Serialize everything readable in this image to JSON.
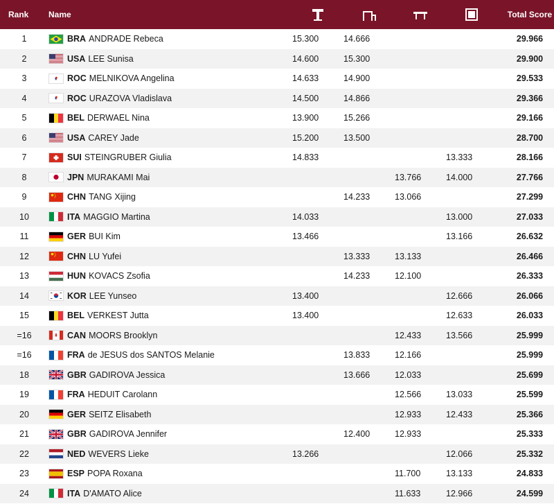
{
  "header": {
    "rank": "Rank",
    "name": "Name",
    "apparatus_icons": [
      "vault-icon",
      "uneven-bars-icon",
      "balance-beam-icon",
      "floor-exercise-icon"
    ],
    "total": "Total Score"
  },
  "colors": {
    "header_bg": "#7a1428",
    "row_alt": "#f2f2f2"
  },
  "rows": [
    {
      "rank": "1",
      "noc": "BRA",
      "athlete": "ANDRADE Rebeca",
      "vt": "15.300",
      "ub": "14.666",
      "bb": "",
      "fx": "",
      "total": "29.966"
    },
    {
      "rank": "2",
      "noc": "USA",
      "athlete": "LEE Sunisa",
      "vt": "14.600",
      "ub": "15.300",
      "bb": "",
      "fx": "",
      "total": "29.900"
    },
    {
      "rank": "3",
      "noc": "ROC",
      "athlete": "MELNIKOVA Angelina",
      "vt": "14.633",
      "ub": "14.900",
      "bb": "",
      "fx": "",
      "total": "29.533"
    },
    {
      "rank": "4",
      "noc": "ROC",
      "athlete": "URAZOVA Vladislava",
      "vt": "14.500",
      "ub": "14.866",
      "bb": "",
      "fx": "",
      "total": "29.366"
    },
    {
      "rank": "5",
      "noc": "BEL",
      "athlete": "DERWAEL Nina",
      "vt": "13.900",
      "ub": "15.266",
      "bb": "",
      "fx": "",
      "total": "29.166"
    },
    {
      "rank": "6",
      "noc": "USA",
      "athlete": "CAREY Jade",
      "vt": "15.200",
      "ub": "13.500",
      "bb": "",
      "fx": "",
      "total": "28.700"
    },
    {
      "rank": "7",
      "noc": "SUI",
      "athlete": "STEINGRUBER Giulia",
      "vt": "14.833",
      "ub": "",
      "bb": "",
      "fx": "13.333",
      "total": "28.166"
    },
    {
      "rank": "8",
      "noc": "JPN",
      "athlete": "MURAKAMI Mai",
      "vt": "",
      "ub": "",
      "bb": "13.766",
      "fx": "14.000",
      "total": "27.766"
    },
    {
      "rank": "9",
      "noc": "CHN",
      "athlete": "TANG Xijing",
      "vt": "",
      "ub": "14.233",
      "bb": "13.066",
      "fx": "",
      "total": "27.299"
    },
    {
      "rank": "10",
      "noc": "ITA",
      "athlete": "MAGGIO Martina",
      "vt": "14.033",
      "ub": "",
      "bb": "",
      "fx": "13.000",
      "total": "27.033"
    },
    {
      "rank": "11",
      "noc": "GER",
      "athlete": "BUI Kim",
      "vt": "13.466",
      "ub": "",
      "bb": "",
      "fx": "13.166",
      "total": "26.632"
    },
    {
      "rank": "12",
      "noc": "CHN",
      "athlete": "LU Yufei",
      "vt": "",
      "ub": "13.333",
      "bb": "13.133",
      "fx": "",
      "total": "26.466"
    },
    {
      "rank": "13",
      "noc": "HUN",
      "athlete": "KOVACS Zsofia",
      "vt": "",
      "ub": "14.233",
      "bb": "12.100",
      "fx": "",
      "total": "26.333"
    },
    {
      "rank": "14",
      "noc": "KOR",
      "athlete": "LEE Yunseo",
      "vt": "13.400",
      "ub": "",
      "bb": "",
      "fx": "12.666",
      "total": "26.066"
    },
    {
      "rank": "15",
      "noc": "BEL",
      "athlete": "VERKEST Jutta",
      "vt": "13.400",
      "ub": "",
      "bb": "",
      "fx": "12.633",
      "total": "26.033"
    },
    {
      "rank": "=16",
      "noc": "CAN",
      "athlete": "MOORS Brooklyn",
      "vt": "",
      "ub": "",
      "bb": "12.433",
      "fx": "13.566",
      "total": "25.999"
    },
    {
      "rank": "=16",
      "noc": "FRA",
      "athlete": "de JESUS dos SANTOS Melanie",
      "vt": "",
      "ub": "13.833",
      "bb": "12.166",
      "fx": "",
      "total": "25.999"
    },
    {
      "rank": "18",
      "noc": "GBR",
      "athlete": "GADIROVA Jessica",
      "vt": "",
      "ub": "13.666",
      "bb": "12.033",
      "fx": "",
      "total": "25.699"
    },
    {
      "rank": "19",
      "noc": "FRA",
      "athlete": "HEDUIT Carolann",
      "vt": "",
      "ub": "",
      "bb": "12.566",
      "fx": "13.033",
      "total": "25.599"
    },
    {
      "rank": "20",
      "noc": "GER",
      "athlete": "SEITZ Elisabeth",
      "vt": "",
      "ub": "",
      "bb": "12.933",
      "fx": "12.433",
      "total": "25.366"
    },
    {
      "rank": "21",
      "noc": "GBR",
      "athlete": "GADIROVA Jennifer",
      "vt": "",
      "ub": "12.400",
      "bb": "12.933",
      "fx": "",
      "total": "25.333"
    },
    {
      "rank": "22",
      "noc": "NED",
      "athlete": "WEVERS Lieke",
      "vt": "13.266",
      "ub": "",
      "bb": "",
      "fx": "12.066",
      "total": "25.332"
    },
    {
      "rank": "23",
      "noc": "ESP",
      "athlete": "POPA Roxana",
      "vt": "",
      "ub": "",
      "bb": "11.700",
      "fx": "13.133",
      "total": "24.833"
    },
    {
      "rank": "24",
      "noc": "ITA",
      "athlete": "D'AMATO Alice",
      "vt": "",
      "ub": "",
      "bb": "11.633",
      "fx": "12.966",
      "total": "24.599"
    }
  ]
}
